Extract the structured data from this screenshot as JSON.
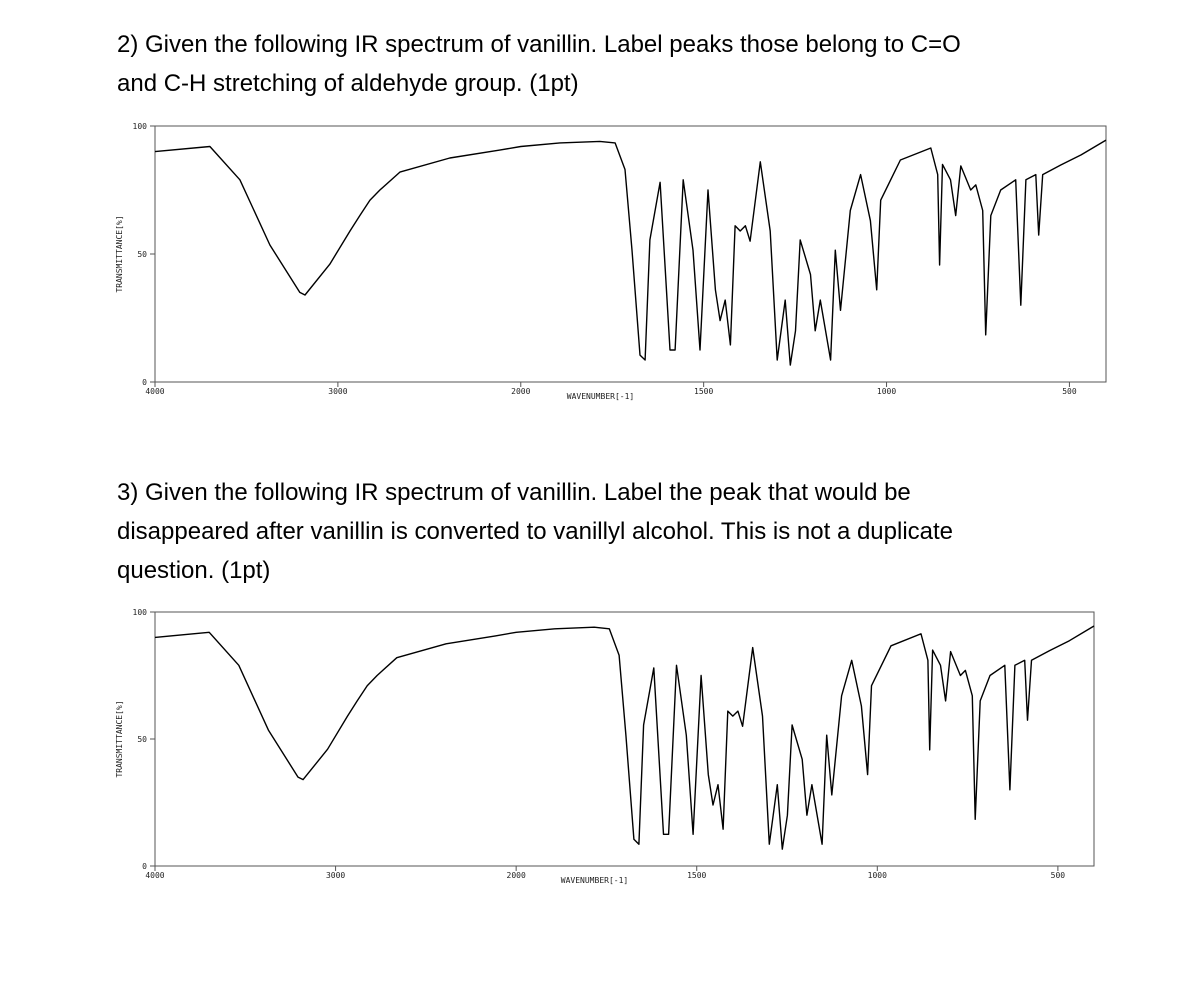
{
  "questions": [
    {
      "lines": [
        "2) Given the following IR spectrum of vanillin. Label peaks those belong to C=O",
        "and C-H stretching of aldehyde group. (1pt)"
      ]
    },
    {
      "lines": [
        "3) Given the following IR spectrum of vanillin. Label the peak that would be",
        "disappeared after vanillin is converted to vanillyl alcohol. This is not a duplicate",
        "question. (1pt)"
      ]
    }
  ],
  "chart_data": [
    {
      "type": "line",
      "xlabel": "WAVENUMBER[-1]",
      "ylabel": "TRANSMITTANCE[%]",
      "color": "#000000",
      "xlim": [
        4000,
        400
      ],
      "x_scale_break": 2000,
      "xticks": [
        4000,
        3000,
        2000,
        1500,
        1000,
        500
      ],
      "ylim": [
        0,
        100
      ],
      "yticks": [
        0,
        50,
        100
      ],
      "x": [
        4000,
        3700,
        3536,
        3372,
        3208,
        3180,
        3044,
        2934,
        2880,
        2825,
        2770,
        2661,
        2388,
        2115,
        2000,
        1893,
        1784,
        1742,
        1715,
        1696,
        1674,
        1660,
        1647,
        1619,
        1592,
        1578,
        1556,
        1529,
        1510,
        1488,
        1468,
        1455,
        1441,
        1427,
        1414,
        1400,
        1386,
        1373,
        1345,
        1318,
        1299,
        1277,
        1263,
        1249,
        1236,
        1208,
        1195,
        1181,
        1153,
        1140,
        1126,
        1099,
        1071,
        1044,
        1027,
        1016,
        962,
        879,
        860,
        855,
        847,
        825,
        811,
        797,
        770,
        756,
        737,
        729,
        715,
        688,
        647,
        633,
        619,
        592,
        584,
        573,
        523,
        468,
        400
      ],
      "values": [
        90,
        92,
        79,
        53.5,
        35,
        34,
        46,
        59,
        65,
        71,
        75,
        82,
        87.5,
        90.6,
        92,
        93.4,
        94,
        93.4,
        83,
        51.5,
        10.5,
        8.6,
        55.5,
        78,
        12.5,
        12.5,
        79,
        51.5,
        12.5,
        75,
        36,
        24,
        32,
        14.5,
        61,
        59,
        61,
        55,
        86,
        59,
        8.6,
        32,
        6.6,
        20,
        55.5,
        42,
        20,
        32,
        8.6,
        51.5,
        28,
        67,
        81,
        63,
        36,
        71,
        86.7,
        91.4,
        81,
        45.7,
        85,
        79,
        65,
        84.4,
        75,
        77,
        67,
        18.4,
        65,
        75,
        79,
        30,
        79,
        81,
        57.4,
        81,
        84.8,
        88.7,
        94.5
      ]
    },
    {
      "type": "line",
      "xlabel": "WAVENUMBER[-1]",
      "ylabel": "TRANSMITTANCE[%]",
      "color": "#000000",
      "xlim": [
        4000,
        400
      ],
      "x_scale_break": 2000,
      "xticks": [
        4000,
        3000,
        2000,
        1500,
        1000,
        500
      ],
      "ylim": [
        0,
        100
      ],
      "yticks": [
        0,
        50,
        100
      ],
      "x": [
        4000,
        3700,
        3536,
        3372,
        3208,
        3180,
        3044,
        2934,
        2880,
        2825,
        2770,
        2661,
        2388,
        2115,
        2000,
        1893,
        1784,
        1742,
        1715,
        1696,
        1674,
        1660,
        1647,
        1619,
        1592,
        1578,
        1556,
        1529,
        1510,
        1488,
        1468,
        1455,
        1441,
        1427,
        1414,
        1400,
        1386,
        1373,
        1345,
        1318,
        1299,
        1277,
        1263,
        1249,
        1236,
        1208,
        1195,
        1181,
        1153,
        1140,
        1126,
        1099,
        1071,
        1044,
        1027,
        1016,
        962,
        879,
        860,
        855,
        847,
        825,
        811,
        797,
        770,
        756,
        737,
        729,
        715,
        688,
        647,
        633,
        619,
        592,
        584,
        573,
        523,
        468,
        400
      ],
      "values": [
        90,
        92,
        79,
        53.5,
        35,
        34,
        46,
        59,
        65,
        71,
        75,
        82,
        87.5,
        90.6,
        92,
        93.4,
        94,
        93.4,
        83,
        51.5,
        10.5,
        8.6,
        55.5,
        78,
        12.5,
        12.5,
        79,
        51.5,
        12.5,
        75,
        36,
        24,
        32,
        14.5,
        61,
        59,
        61,
        55,
        86,
        59,
        8.6,
        32,
        6.6,
        20,
        55.5,
        42,
        20,
        32,
        8.6,
        51.5,
        28,
        67,
        81,
        63,
        36,
        71,
        86.7,
        91.4,
        81,
        45.7,
        85,
        79,
        65,
        84.4,
        75,
        77,
        67,
        18.4,
        65,
        75,
        79,
        30,
        79,
        81,
        57.4,
        81,
        84.8,
        88.7,
        94.5
      ]
    }
  ]
}
